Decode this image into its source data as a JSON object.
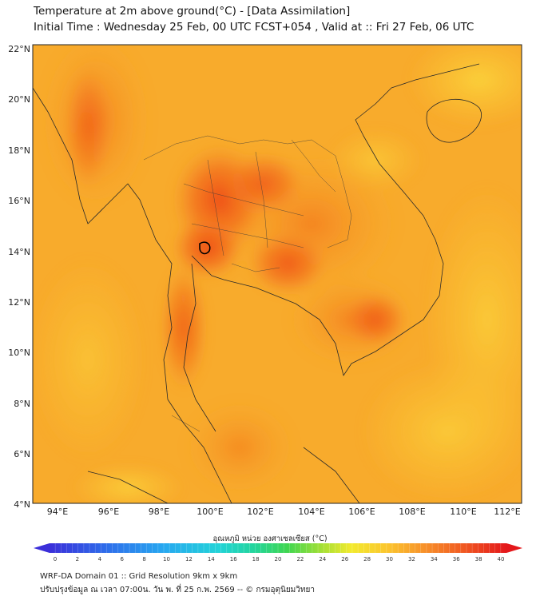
{
  "header": {
    "title": "Temperature at 2m above ground(°C) - [Data Assimilation]",
    "subtitle": "Initial Time : Wednesday 25 Feb, 00 UTC FCST+054 , Valid at :: Fri 27 Feb, 06 UTC"
  },
  "map": {
    "lat_labels": [
      "22°N",
      "20°N",
      "18°N",
      "16°N",
      "14°N",
      "12°N",
      "10°N",
      "8°N",
      "6°N",
      "4°N"
    ],
    "lon_labels": [
      "94°E",
      "96°E",
      "98°E",
      "100°E",
      "102°E",
      "104°E",
      "106°E",
      "108°E",
      "110°E",
      "112°E"
    ],
    "lat_range": [
      4,
      22
    ],
    "lon_range": [
      93,
      112.3
    ]
  },
  "colorbar": {
    "title": "อุณหภูมิ หน่วย องศาเซลเซียส (°C)",
    "ticks": [
      "0",
      "2",
      "4",
      "6",
      "8",
      "10",
      "12",
      "14",
      "16",
      "18",
      "20",
      "22",
      "24",
      "26",
      "28",
      "30",
      "32",
      "34",
      "36",
      "38",
      "40"
    ],
    "min": 0,
    "max": 40
  },
  "footer": {
    "line1": "WRF-DA Domain 01 :: Grid Resolution 9km x 9km",
    "line2": "ปรับปรุงข้อมูล ณ เวลา 07:00น. วัน พ. ที่ 25 ก.พ. 2569 -- © กรมอุตุนิยมวิทยา"
  }
}
